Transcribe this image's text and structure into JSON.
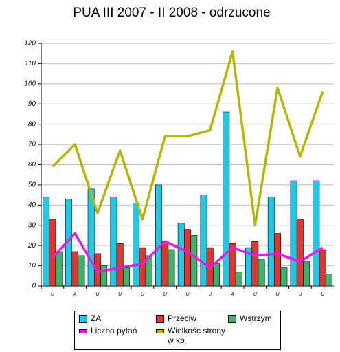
{
  "chart_data": {
    "type": "bar",
    "title": "PUA III 2007 - II 2008 - odrzucone",
    "categories": [
      "U",
      "A",
      "U",
      "U",
      "U",
      "U",
      "U",
      "U",
      "A",
      "U",
      "U",
      "U",
      "U"
    ],
    "ylim": [
      0,
      120
    ],
    "yticks": [
      0,
      10,
      20,
      30,
      40,
      50,
      60,
      70,
      80,
      90,
      100,
      110,
      120
    ],
    "grid": true,
    "series": [
      {
        "name": "ZA",
        "color": "#1ec8e6",
        "type": "bar",
        "values": [
          44,
          43,
          48,
          44,
          41,
          50,
          31,
          45,
          86,
          19,
          44,
          52,
          52
        ]
      },
      {
        "name": "Przeciw",
        "color": "#e8322d",
        "type": "bar",
        "values": [
          33,
          17,
          16,
          21,
          19,
          22,
          28,
          19,
          21,
          22,
          26,
          33,
          18
        ]
      },
      {
        "name": "Wstrzym",
        "color": "#3cb46e",
        "type": "bar",
        "values": [
          17,
          15,
          10,
          9,
          15,
          18,
          25,
          11,
          7,
          13,
          9,
          12,
          6
        ]
      },
      {
        "name": "Liczba pytań",
        "color": "#e020e0",
        "type": "line",
        "values": [
          14,
          26,
          7,
          9,
          11,
          22,
          17,
          9,
          19,
          15,
          16,
          12,
          19
        ]
      },
      {
        "name": "Wielkośc strony w kb",
        "color": "#b5b500",
        "type": "line",
        "values": [
          59,
          70,
          36,
          67,
          33,
          74,
          74,
          77,
          116,
          30,
          98,
          64,
          96
        ]
      }
    ]
  }
}
